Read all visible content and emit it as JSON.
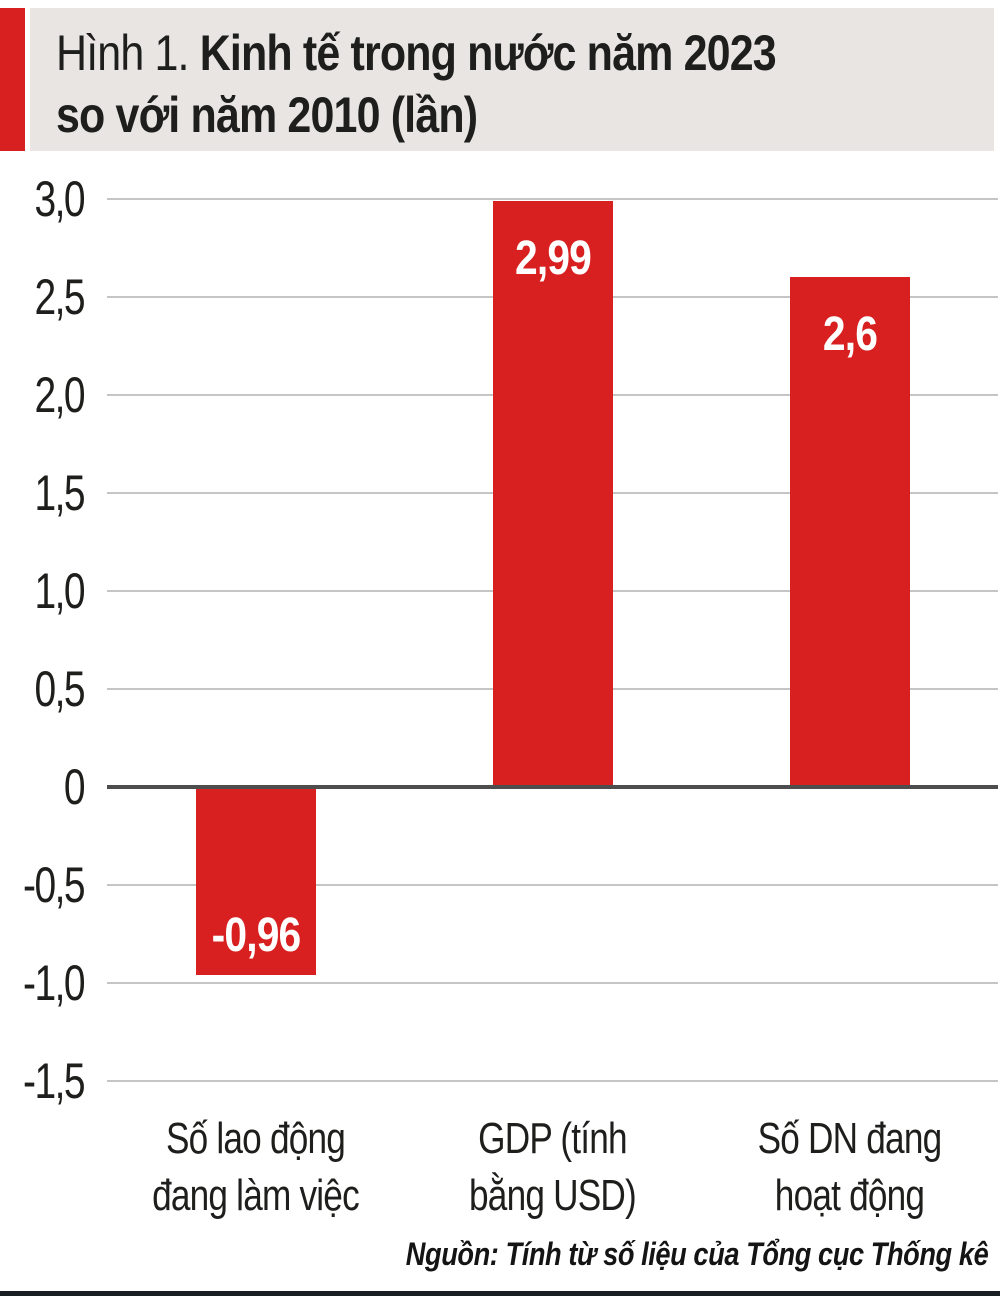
{
  "header": {
    "figure_label": "Hình 1.",
    "title_line1": "Kinh tế trong nước năm 2023",
    "title_line2": "so với năm 2010 (lần)"
  },
  "chart_data": {
    "type": "bar",
    "title": "Hình 1. Kinh tế trong nước năm 2023 so với năm 2010 (lần)",
    "categories": [
      "Số lao động đang làm việc",
      "GDP (tính bằng USD)",
      "Số DN đang hoạt động"
    ],
    "category_lines": [
      [
        "Số lao động",
        "đang làm việc"
      ],
      [
        "GDP (tính",
        "bằng USD)"
      ],
      [
        "Số DN đang",
        "hoạt động"
      ]
    ],
    "values": [
      -0.96,
      2.99,
      2.6
    ],
    "value_labels": [
      "-0,96",
      "2,99",
      "2,6"
    ],
    "y_ticks": [
      {
        "value": 3.0,
        "label": "3,0"
      },
      {
        "value": 2.5,
        "label": "2,5"
      },
      {
        "value": 2.0,
        "label": "2,0"
      },
      {
        "value": 1.5,
        "label": "1,5"
      },
      {
        "value": 1.0,
        "label": "1,0"
      },
      {
        "value": 0.5,
        "label": "0,5"
      },
      {
        "value": 0,
        "label": "0"
      },
      {
        "value": -0.5,
        "label": "-0,5"
      },
      {
        "value": -1.0,
        "label": "-1,0"
      },
      {
        "value": -1.5,
        "label": "-1,5"
      }
    ],
    "ylim": [
      -1.5,
      3.0
    ],
    "grid": true,
    "legend": "none",
    "xlabel": "",
    "ylabel": ""
  },
  "source": {
    "text": "Nguồn: Tính từ số liệu của Tổng cục Thống kê"
  },
  "colors": {
    "bar": "#d7201f",
    "header_accent": "#d7201f",
    "header_box": "#e8e5e2",
    "grid": "#c5c5c5",
    "axis": "#4d4d4d",
    "text": "#1e1e1c",
    "value_text": "#ffffff",
    "bottom_rule": "#191d24"
  }
}
